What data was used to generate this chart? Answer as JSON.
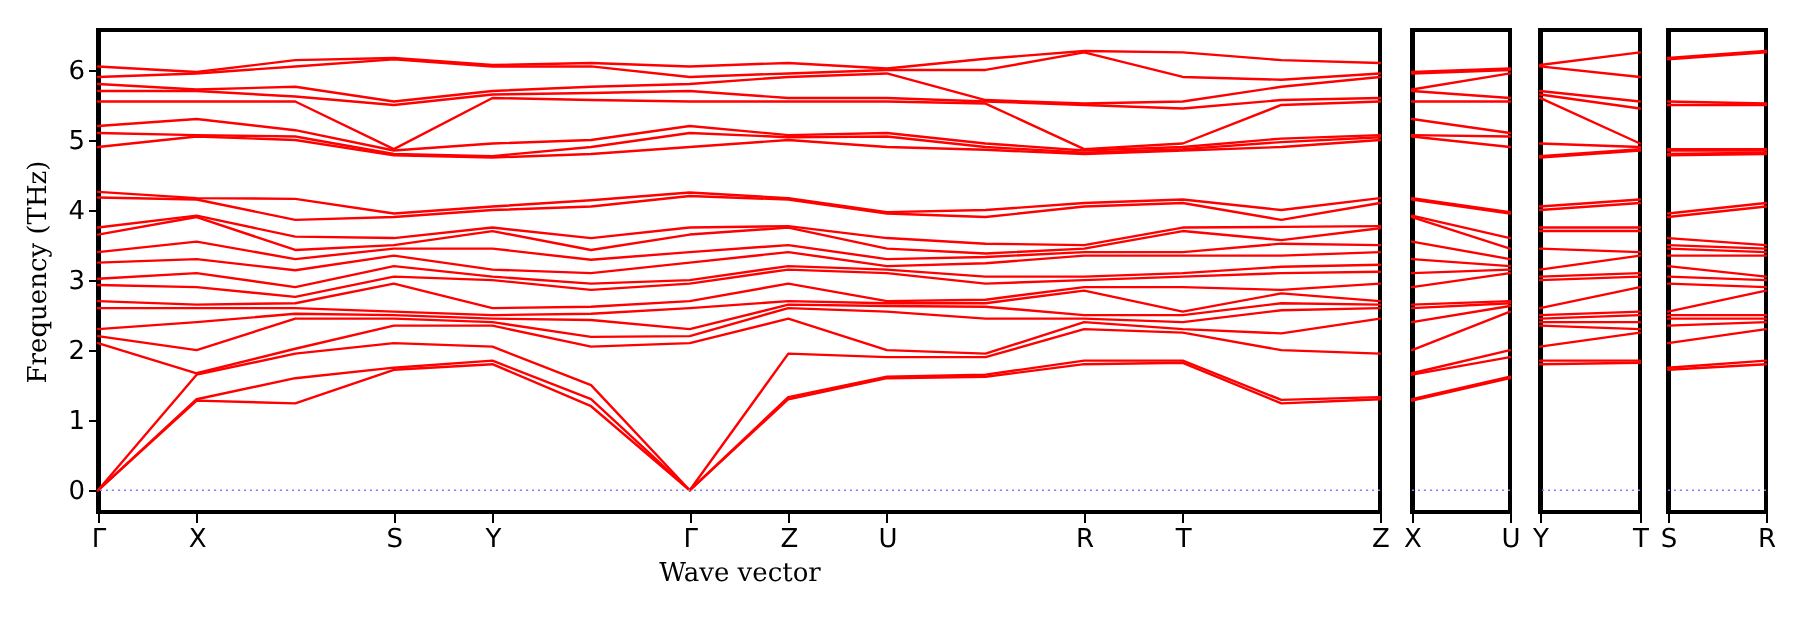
{
  "chart_data": [
    {
      "type": "line",
      "xlabel": "Wave vector",
      "ylabel": "Frequency (THz)",
      "categories": [
        "Γ",
        "X",
        null,
        "S",
        "Y",
        null,
        "Γ",
        "Z",
        "U",
        null,
        "R",
        "T",
        null,
        "Z"
      ],
      "ylim": [
        -0.31,
        6.57
      ],
      "yticks": [
        0,
        1,
        2,
        3,
        4,
        5,
        6
      ],
      "ref_lines": [
        {
          "axis": "y",
          "value": 0,
          "line_style": "dotted",
          "color": "#8080ff"
        }
      ],
      "series": [
        {
          "color": "#ff0000",
          "values": [
            0,
            1.28,
            1.24,
            1.72,
            1.8,
            1.2,
            0,
            1.3,
            1.6,
            1.62,
            1.8,
            1.82,
            1.24,
            1.3
          ]
        },
        {
          "color": "#ff0000",
          "values": [
            0,
            1.3,
            1.6,
            1.75,
            1.85,
            1.3,
            0,
            1.33,
            1.62,
            1.65,
            1.85,
            1.85,
            1.29,
            1.33
          ]
        },
        {
          "color": "#ff0000",
          "values": [
            0,
            1.65,
            1.95,
            2.1,
            2.05,
            1.5,
            0,
            1.95,
            1.9,
            1.9,
            2.3,
            2.25,
            2.0,
            1.95
          ]
        },
        {
          "color": "#ff0000",
          "values": [
            2.1,
            1.67,
            2.02,
            2.35,
            2.35,
            2.05,
            2.1,
            2.45,
            2.0,
            1.95,
            2.4,
            2.3,
            2.24,
            2.45
          ]
        },
        {
          "color": "#ff0000",
          "values": [
            2.2,
            2.0,
            2.45,
            2.45,
            2.4,
            2.19,
            2.2,
            2.6,
            2.55,
            2.45,
            2.45,
            2.4,
            2.57,
            2.6
          ]
        },
        {
          "color": "#ff0000",
          "values": [
            2.3,
            2.4,
            2.52,
            2.5,
            2.45,
            2.43,
            2.3,
            2.65,
            2.63,
            2.62,
            2.5,
            2.5,
            2.67,
            2.65
          ]
        },
        {
          "color": "#ff0000",
          "values": [
            2.6,
            2.6,
            2.6,
            2.55,
            2.5,
            2.52,
            2.6,
            2.7,
            2.67,
            2.67,
            2.85,
            2.55,
            2.81,
            2.7
          ]
        },
        {
          "color": "#ff0000",
          "values": [
            2.7,
            2.65,
            2.67,
            2.95,
            2.6,
            2.62,
            2.7,
            2.95,
            2.7,
            2.72,
            2.9,
            2.9,
            2.86,
            2.95
          ]
        },
        {
          "color": "#ff0000",
          "values": [
            2.93,
            2.9,
            2.76,
            3.05,
            3.0,
            2.86,
            2.95,
            3.15,
            3.1,
            2.95,
            3.0,
            3.05,
            3.1,
            3.12
          ]
        },
        {
          "color": "#ff0000",
          "values": [
            3.02,
            3.1,
            2.9,
            3.2,
            3.05,
            2.95,
            3.0,
            3.2,
            3.15,
            3.05,
            3.05,
            3.1,
            3.19,
            3.22
          ]
        },
        {
          "color": "#ff0000",
          "values": [
            3.25,
            3.3,
            3.14,
            3.35,
            3.15,
            3.1,
            3.25,
            3.4,
            3.2,
            3.24,
            3.35,
            3.35,
            3.35,
            3.4
          ]
        },
        {
          "color": "#ff0000",
          "values": [
            3.4,
            3.55,
            3.3,
            3.45,
            3.45,
            3.29,
            3.4,
            3.5,
            3.3,
            3.33,
            3.4,
            3.4,
            3.52,
            3.5
          ]
        },
        {
          "color": "#ff0000",
          "values": [
            3.65,
            3.9,
            3.43,
            3.5,
            3.7,
            3.43,
            3.65,
            3.75,
            3.45,
            3.38,
            3.45,
            3.7,
            3.57,
            3.74
          ]
        },
        {
          "color": "#ff0000",
          "values": [
            3.75,
            3.92,
            3.62,
            3.6,
            3.75,
            3.6,
            3.75,
            3.77,
            3.6,
            3.52,
            3.5,
            3.75,
            3.76,
            3.77
          ]
        },
        {
          "color": "#ff0000",
          "values": [
            4.18,
            4.15,
            3.86,
            3.9,
            4.0,
            4.05,
            4.2,
            4.15,
            3.95,
            3.9,
            4.05,
            4.1,
            3.86,
            4.1
          ]
        },
        {
          "color": "#ff0000",
          "values": [
            4.26,
            4.17,
            4.16,
            3.95,
            4.05,
            4.14,
            4.25,
            4.17,
            3.97,
            4.0,
            4.1,
            4.15,
            4.0,
            4.17
          ]
        },
        {
          "color": "#ff0000",
          "values": [
            4.9,
            5.05,
            5.0,
            4.78,
            4.75,
            4.8,
            4.9,
            5.0,
            4.9,
            4.86,
            4.8,
            4.85,
            4.9,
            5.0
          ]
        },
        {
          "color": "#ff0000",
          "values": [
            5.1,
            5.07,
            5.05,
            4.8,
            4.77,
            4.9,
            5.1,
            5.04,
            5.05,
            4.9,
            4.82,
            4.87,
            4.97,
            5.04
          ]
        },
        {
          "color": "#ff0000",
          "values": [
            5.2,
            5.3,
            5.14,
            4.85,
            4.95,
            5.0,
            5.2,
            5.07,
            5.1,
            4.95,
            4.85,
            4.9,
            5.02,
            5.07
          ]
        },
        {
          "color": "#ff0000",
          "values": [
            5.55,
            5.55,
            5.55,
            4.87,
            5.6,
            5.57,
            5.55,
            5.55,
            5.55,
            5.52,
            4.87,
            4.95,
            5.5,
            5.55
          ]
        },
        {
          "color": "#ff0000",
          "values": [
            5.7,
            5.7,
            5.62,
            5.5,
            5.65,
            5.67,
            5.7,
            5.6,
            5.6,
            5.55,
            5.5,
            5.45,
            5.57,
            5.6
          ]
        },
        {
          "color": "#ff0000",
          "values": [
            5.8,
            5.72,
            5.76,
            5.55,
            5.7,
            5.76,
            5.8,
            5.9,
            5.95,
            5.57,
            5.52,
            5.55,
            5.76,
            5.9
          ]
        },
        {
          "color": "#ff0000",
          "values": [
            5.9,
            5.95,
            6.05,
            6.15,
            6.05,
            6.05,
            5.9,
            5.95,
            6.0,
            6.0,
            6.25,
            5.9,
            5.86,
            5.95
          ]
        },
        {
          "color": "#ff0000",
          "values": [
            6.05,
            5.97,
            6.14,
            6.17,
            6.07,
            6.1,
            6.05,
            6.1,
            6.02,
            6.16,
            6.27,
            6.25,
            6.14,
            6.1
          ]
        }
      ]
    },
    {
      "type": "line",
      "tick_labels": "x",
      "categories": [
        "X",
        "U"
      ],
      "ylim": [
        -0.31,
        6.57
      ],
      "yticks": [
        0,
        1,
        2,
        3,
        4,
        5,
        6
      ],
      "ref_lines": [
        {
          "axis": "y",
          "value": 0,
          "line_style": "dotted",
          "color": "#8080ff"
        }
      ],
      "series": [
        {
          "color": "#ff0000",
          "values": [
            1.28,
            1.6
          ]
        },
        {
          "color": "#ff0000",
          "values": [
            1.3,
            1.62
          ]
        },
        {
          "color": "#ff0000",
          "values": [
            1.65,
            1.9
          ]
        },
        {
          "color": "#ff0000",
          "values": [
            1.67,
            2.0
          ]
        },
        {
          "color": "#ff0000",
          "values": [
            2.0,
            2.55
          ]
        },
        {
          "color": "#ff0000",
          "values": [
            2.4,
            2.63
          ]
        },
        {
          "color": "#ff0000",
          "values": [
            2.6,
            2.67
          ]
        },
        {
          "color": "#ff0000",
          "values": [
            2.65,
            2.7
          ]
        },
        {
          "color": "#ff0000",
          "values": [
            2.9,
            3.1
          ]
        },
        {
          "color": "#ff0000",
          "values": [
            3.1,
            3.15
          ]
        },
        {
          "color": "#ff0000",
          "values": [
            3.3,
            3.2
          ]
        },
        {
          "color": "#ff0000",
          "values": [
            3.55,
            3.3
          ]
        },
        {
          "color": "#ff0000",
          "values": [
            3.9,
            3.45
          ]
        },
        {
          "color": "#ff0000",
          "values": [
            3.92,
            3.6
          ]
        },
        {
          "color": "#ff0000",
          "values": [
            4.15,
            3.95
          ]
        },
        {
          "color": "#ff0000",
          "values": [
            4.17,
            3.97
          ]
        },
        {
          "color": "#ff0000",
          "values": [
            5.05,
            4.9
          ]
        },
        {
          "color": "#ff0000",
          "values": [
            5.07,
            5.05
          ]
        },
        {
          "color": "#ff0000",
          "values": [
            5.3,
            5.1
          ]
        },
        {
          "color": "#ff0000",
          "values": [
            5.55,
            5.55
          ]
        },
        {
          "color": "#ff0000",
          "values": [
            5.7,
            5.6
          ]
        },
        {
          "color": "#ff0000",
          "values": [
            5.72,
            5.95
          ]
        },
        {
          "color": "#ff0000",
          "values": [
            5.95,
            6.0
          ]
        },
        {
          "color": "#ff0000",
          "values": [
            5.97,
            6.02
          ]
        }
      ]
    },
    {
      "type": "line",
      "tick_labels": "x",
      "categories": [
        "Y",
        "T"
      ],
      "ylim": [
        -0.31,
        6.57
      ],
      "yticks": [
        0,
        1,
        2,
        3,
        4,
        5,
        6
      ],
      "ref_lines": [
        {
          "axis": "y",
          "value": 0,
          "line_style": "dotted",
          "color": "#8080ff"
        }
      ],
      "series": [
        {
          "color": "#ff0000",
          "values": [
            1.8,
            1.82
          ]
        },
        {
          "color": "#ff0000",
          "values": [
            1.85,
            1.85
          ]
        },
        {
          "color": "#ff0000",
          "values": [
            2.05,
            2.25
          ]
        },
        {
          "color": "#ff0000",
          "values": [
            2.35,
            2.3
          ]
        },
        {
          "color": "#ff0000",
          "values": [
            2.4,
            2.4
          ]
        },
        {
          "color": "#ff0000",
          "values": [
            2.45,
            2.5
          ]
        },
        {
          "color": "#ff0000",
          "values": [
            2.5,
            2.55
          ]
        },
        {
          "color": "#ff0000",
          "values": [
            2.6,
            2.9
          ]
        },
        {
          "color": "#ff0000",
          "values": [
            3.0,
            3.05
          ]
        },
        {
          "color": "#ff0000",
          "values": [
            3.05,
            3.1
          ]
        },
        {
          "color": "#ff0000",
          "values": [
            3.15,
            3.35
          ]
        },
        {
          "color": "#ff0000",
          "values": [
            3.45,
            3.4
          ]
        },
        {
          "color": "#ff0000",
          "values": [
            3.7,
            3.7
          ]
        },
        {
          "color": "#ff0000",
          "values": [
            3.75,
            3.75
          ]
        },
        {
          "color": "#ff0000",
          "values": [
            4.0,
            4.1
          ]
        },
        {
          "color": "#ff0000",
          "values": [
            4.05,
            4.15
          ]
        },
        {
          "color": "#ff0000",
          "values": [
            4.75,
            4.85
          ]
        },
        {
          "color": "#ff0000",
          "values": [
            4.77,
            4.87
          ]
        },
        {
          "color": "#ff0000",
          "values": [
            4.95,
            4.9
          ]
        },
        {
          "color": "#ff0000",
          "values": [
            5.6,
            4.95
          ]
        },
        {
          "color": "#ff0000",
          "values": [
            5.65,
            5.45
          ]
        },
        {
          "color": "#ff0000",
          "values": [
            5.7,
            5.55
          ]
        },
        {
          "color": "#ff0000",
          "values": [
            6.05,
            5.9
          ]
        },
        {
          "color": "#ff0000",
          "values": [
            6.07,
            6.25
          ]
        }
      ]
    },
    {
      "type": "line",
      "tick_labels": "x",
      "categories": [
        "S",
        "R"
      ],
      "ylim": [
        -0.31,
        6.57
      ],
      "yticks": [
        0,
        1,
        2,
        3,
        4,
        5,
        6
      ],
      "ref_lines": [
        {
          "axis": "y",
          "value": 0,
          "line_style": "dotted",
          "color": "#8080ff"
        }
      ],
      "series": [
        {
          "color": "#ff0000",
          "values": [
            1.72,
            1.8
          ]
        },
        {
          "color": "#ff0000",
          "values": [
            1.75,
            1.85
          ]
        },
        {
          "color": "#ff0000",
          "values": [
            2.1,
            2.3
          ]
        },
        {
          "color": "#ff0000",
          "values": [
            2.35,
            2.4
          ]
        },
        {
          "color": "#ff0000",
          "values": [
            2.45,
            2.45
          ]
        },
        {
          "color": "#ff0000",
          "values": [
            2.5,
            2.5
          ]
        },
        {
          "color": "#ff0000",
          "values": [
            2.55,
            2.85
          ]
        },
        {
          "color": "#ff0000",
          "values": [
            2.95,
            2.9
          ]
        },
        {
          "color": "#ff0000",
          "values": [
            3.05,
            3.0
          ]
        },
        {
          "color": "#ff0000",
          "values": [
            3.2,
            3.05
          ]
        },
        {
          "color": "#ff0000",
          "values": [
            3.35,
            3.35
          ]
        },
        {
          "color": "#ff0000",
          "values": [
            3.45,
            3.4
          ]
        },
        {
          "color": "#ff0000",
          "values": [
            3.5,
            3.45
          ]
        },
        {
          "color": "#ff0000",
          "values": [
            3.6,
            3.5
          ]
        },
        {
          "color": "#ff0000",
          "values": [
            3.9,
            4.05
          ]
        },
        {
          "color": "#ff0000",
          "values": [
            3.95,
            4.1
          ]
        },
        {
          "color": "#ff0000",
          "values": [
            4.78,
            4.8
          ]
        },
        {
          "color": "#ff0000",
          "values": [
            4.8,
            4.82
          ]
        },
        {
          "color": "#ff0000",
          "values": [
            4.85,
            4.85
          ]
        },
        {
          "color": "#ff0000",
          "values": [
            4.87,
            4.87
          ]
        },
        {
          "color": "#ff0000",
          "values": [
            5.5,
            5.5
          ]
        },
        {
          "color": "#ff0000",
          "values": [
            5.55,
            5.52
          ]
        },
        {
          "color": "#ff0000",
          "values": [
            6.15,
            6.25
          ]
        },
        {
          "color": "#ff0000",
          "values": [
            6.17,
            6.27
          ]
        }
      ]
    }
  ]
}
